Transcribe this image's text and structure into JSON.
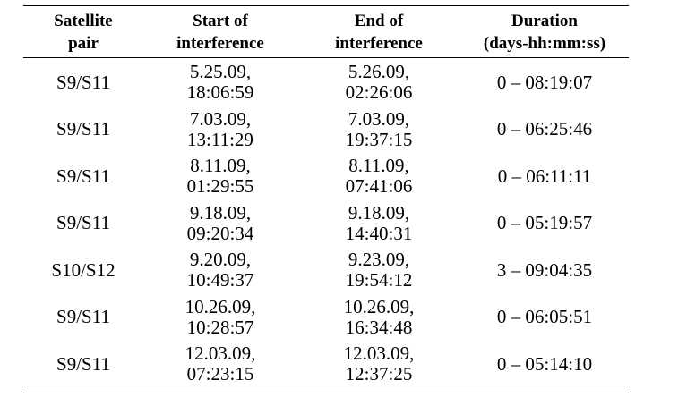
{
  "table": {
    "headers": [
      [
        "Satellite",
        "pair"
      ],
      [
        "Start of",
        "interference"
      ],
      [
        "End of",
        "interference"
      ],
      [
        "Duration",
        "(days-hh:mm:ss)"
      ]
    ],
    "rows": [
      {
        "pair": "S9/S11",
        "start": [
          "5.25.09,",
          "18:06:59"
        ],
        "end": [
          "5.26.09,",
          "02:26:06"
        ],
        "duration": "0 – 08:19:07"
      },
      {
        "pair": "S9/S11",
        "start": [
          "7.03.09,",
          "13:11:29"
        ],
        "end": [
          "7.03.09,",
          "19:37:15"
        ],
        "duration": "0 – 06:25:46"
      },
      {
        "pair": "S9/S11",
        "start": [
          "8.11.09,",
          "01:29:55"
        ],
        "end": [
          "8.11.09,",
          "07:41:06"
        ],
        "duration": "0 – 06:11:11"
      },
      {
        "pair": "S9/S11",
        "start": [
          "9.18.09,",
          "09:20:34"
        ],
        "end": [
          "9.18.09,",
          "14:40:31"
        ],
        "duration": "0 – 05:19:57"
      },
      {
        "pair": "S10/S12",
        "start": [
          "9.20.09,",
          "10:49:37"
        ],
        "end": [
          "9.23.09,",
          "19:54:12"
        ],
        "duration": "3 – 09:04:35"
      },
      {
        "pair": "S9/S11",
        "start": [
          "10.26.09,",
          "10:28:57"
        ],
        "end": [
          "10.26.09,",
          "16:34:48"
        ],
        "duration": "0 – 06:05:51"
      },
      {
        "pair": "S9/S11",
        "start": [
          "12.03.09,",
          "07:23:15"
        ],
        "end": [
          "12.03.09,",
          "12:37:25"
        ],
        "duration": "0 – 05:14:10"
      }
    ]
  }
}
